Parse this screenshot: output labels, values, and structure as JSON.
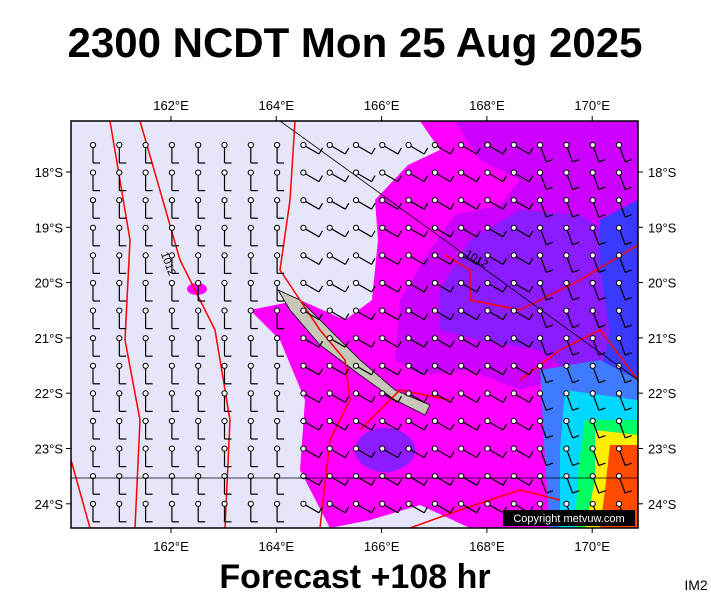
{
  "title": "2300 NCDT Mon 25 Aug 2025",
  "map": {
    "x_ticks": [
      "162°E",
      "164°E",
      "166°E",
      "168°E",
      "170°E"
    ],
    "y_ticks": [
      "18°S",
      "19°S",
      "20°S",
      "21°S",
      "22°S",
      "23°S",
      "24°S"
    ],
    "contour_labels": [
      "1012",
      "1012"
    ],
    "copyright": "Copyright metvuw.com"
  },
  "footer": "Forecast +108 hr",
  "image_id": "IM2"
}
